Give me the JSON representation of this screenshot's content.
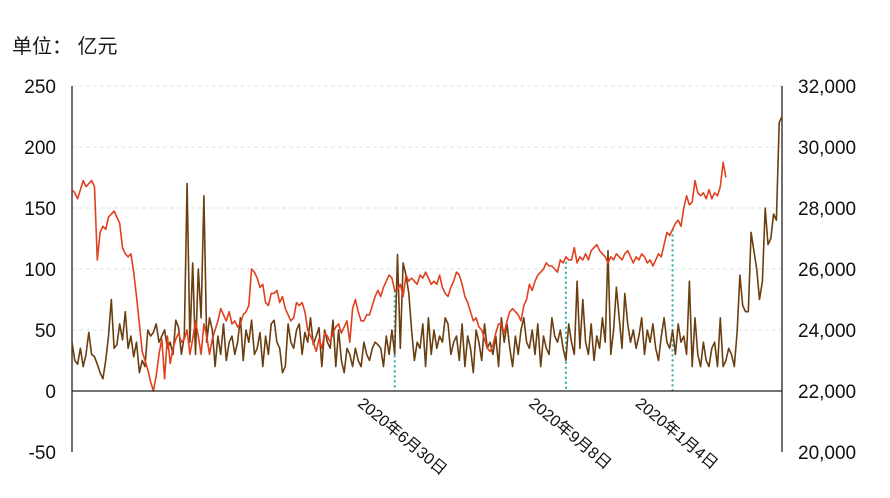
{
  "unit_label": "单位： 亿元",
  "colors": {
    "left_series": "#6b3e10",
    "right_series": "#e0401e",
    "grid": "#d6e6e6",
    "marker": "#2aa8a8"
  },
  "chart_data": {
    "type": "line",
    "y_left": {
      "ticks": [
        "250",
        "200",
        "150",
        "100",
        "50",
        "0",
        "-50"
      ],
      "min": -50,
      "max": 250
    },
    "y_right": {
      "ticks": [
        "32,000",
        "30,000",
        "28,000",
        "26,000",
        "24,000",
        "22,000",
        "20,000"
      ],
      "min": 20000,
      "max": 32000
    },
    "x_ticks": [
      {
        "label": "2020年6月30日",
        "index": 115
      },
      {
        "label": "2020年9月8日",
        "index": 176
      },
      {
        "label": "2020年1月4日",
        "index": 214
      }
    ],
    "grid": true,
    "series": [
      {
        "axis": "left",
        "values": [
          40,
          25,
          22,
          35,
          20,
          30,
          48,
          30,
          28,
          22,
          15,
          10,
          25,
          45,
          75,
          35,
          38,
          55,
          42,
          65,
          35,
          45,
          28,
          40,
          15,
          25,
          20,
          50,
          45,
          48,
          55,
          40,
          45,
          50,
          35,
          40,
          30,
          58,
          52,
          30,
          45,
          170,
          40,
          105,
          30,
          100,
          60,
          160,
          40,
          60,
          50,
          20,
          45,
          30,
          55,
          25,
          40,
          45,
          30,
          40,
          60,
          25,
          50,
          40,
          58,
          30,
          35,
          48,
          20,
          45,
          30,
          55,
          58,
          40,
          35,
          15,
          20,
          55,
          40,
          35,
          50,
          55,
          30,
          48,
          40,
          60,
          38,
          45,
          52,
          20,
          50,
          40,
          35,
          58,
          20,
          50,
          25,
          15,
          35,
          30,
          20,
          35,
          25,
          20,
          40,
          30,
          25,
          35,
          40,
          38,
          35,
          20,
          45,
          30,
          50,
          30,
          112,
          35,
          105,
          95,
          80,
          50,
          25,
          40,
          35,
          55,
          20,
          60,
          30,
          50,
          35,
          45,
          40,
          60,
          55,
          30,
          40,
          45,
          25,
          55,
          20,
          45,
          35,
          15,
          50,
          40,
          25,
          55,
          35,
          40,
          30,
          45,
          20,
          60,
          40,
          55,
          35,
          20,
          45,
          30,
          50,
          60,
          40,
          35,
          50,
          30,
          55,
          20,
          45,
          35,
          30,
          60,
          45,
          40,
          50,
          35,
          25,
          55,
          40,
          30,
          90,
          35,
          75,
          40,
          30,
          55,
          25,
          45,
          35,
          60,
          40,
          115,
          30,
          50,
          85,
          60,
          35,
          80,
          55,
          40,
          50,
          35,
          45,
          60,
          30,
          50,
          40,
          55,
          35,
          25,
          45,
          60,
          40,
          35,
          50,
          30,
          55,
          40,
          45,
          30,
          90,
          20,
          60,
          30,
          20,
          40,
          25,
          20,
          35,
          40,
          20,
          60,
          20,
          25,
          35,
          30,
          20,
          48,
          95,
          70,
          65,
          65,
          130,
          115,
          100,
          75,
          90,
          150,
          120,
          125,
          145,
          140,
          220,
          225
        ]
      },
      {
        "axis": "right",
        "values": [
          28600,
          28500,
          28300,
          28600,
          28900,
          28700,
          28800,
          28900,
          28700,
          26300,
          27200,
          27400,
          27300,
          27700,
          27800,
          27900,
          27700,
          27500,
          26700,
          26500,
          26400,
          26500,
          25900,
          25100,
          24200,
          23300,
          23000,
          22700,
          22300,
          22000,
          22500,
          23200,
          23700,
          22400,
          23800,
          22900,
          23400,
          23700,
          23900,
          23600,
          23700,
          24000,
          23200,
          23700,
          24300,
          23800,
          23200,
          24200,
          23800,
          23200,
          23700,
          24000,
          24300,
          24700,
          24500,
          24300,
          24600,
          24200,
          24300,
          24100,
          24200,
          24500,
          24600,
          24800,
          26000,
          25900,
          25700,
          25400,
          25500,
          24900,
          24800,
          25200,
          25200,
          25300,
          24900,
          25100,
          24700,
          24500,
          24300,
          24400,
          24900,
          24800,
          24900,
          24600,
          24000,
          23800,
          23600,
          23300,
          23700,
          23400,
          23900,
          23800,
          23600,
          23900,
          24100,
          24200,
          23900,
          24100,
          24300,
          23600,
          24700,
          25000,
          24600,
          24300,
          24300,
          24500,
          24500,
          24800,
          25100,
          25300,
          25100,
          25400,
          25600,
          25800,
          25700,
          25300,
          25300,
          25500,
          25100,
          25800,
          25600,
          25700,
          25600,
          25500,
          25800,
          25700,
          25900,
          25700,
          25500,
          25600,
          25500,
          25800,
          25400,
          25200,
          25100,
          25400,
          25600,
          25900,
          25800,
          25500,
          25100,
          24900,
          24600,
          24300,
          24400,
          24100,
          24000,
          23700,
          23400,
          23300,
          23500,
          23900,
          24200,
          24200,
          23900,
          24300,
          24600,
          24700,
          24600,
          24500,
          24300,
          24800,
          25000,
          25500,
          25300,
          25600,
          25800,
          25900,
          26000,
          26200,
          26100,
          26100,
          26000,
          25900,
          26300,
          26200,
          26400,
          26300,
          26300,
          26700,
          26200,
          26400,
          26300,
          26500,
          26300,
          26600,
          26700,
          26800,
          26600,
          26500,
          26400,
          26200,
          26400,
          26300,
          26500,
          26400,
          26300,
          26500,
          26600,
          26400,
          26200,
          26400,
          26300,
          26500,
          26400,
          26200,
          26300,
          26100,
          26300,
          26500,
          26400,
          26800,
          27200,
          27100,
          27300,
          27500,
          27600,
          27400,
          28000,
          28400,
          28100,
          28200,
          28900,
          28500,
          28400,
          28500,
          28300,
          28600,
          28300,
          28500,
          28400,
          28700,
          29500,
          29000
        ]
      }
    ]
  }
}
